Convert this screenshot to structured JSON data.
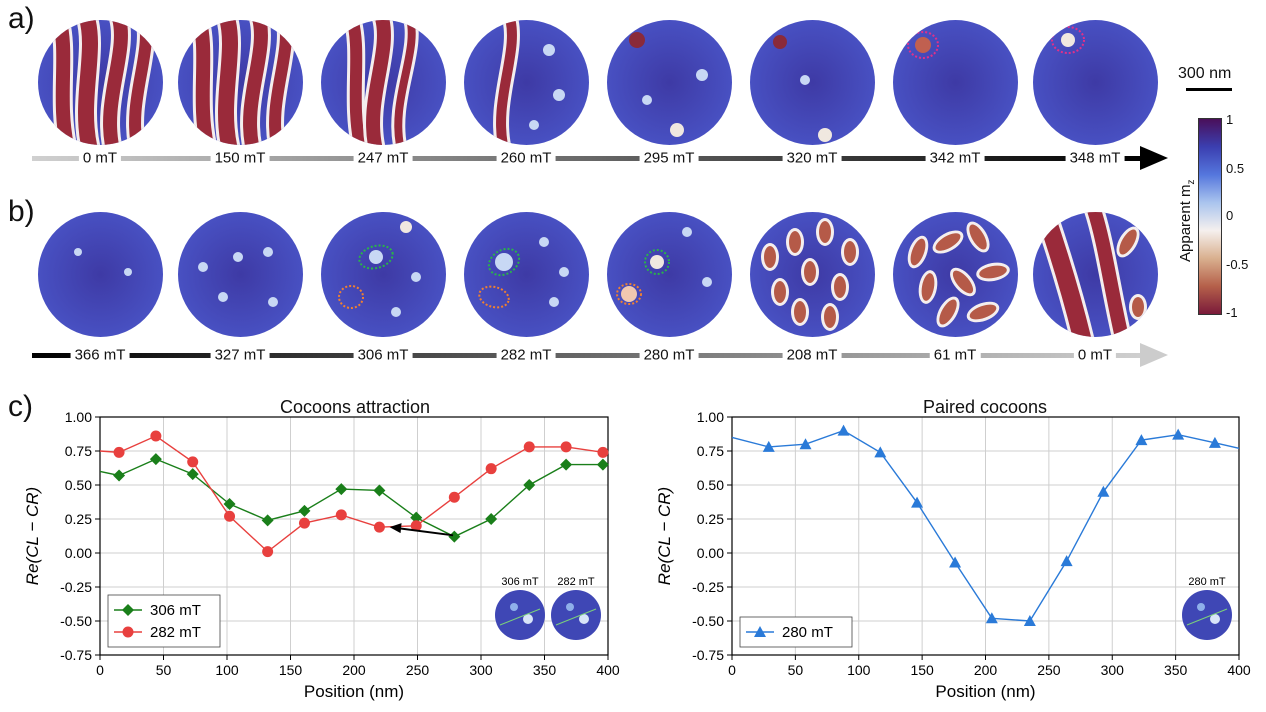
{
  "panels": {
    "a": "a)",
    "b": "b)",
    "c": "c)"
  },
  "row_a": {
    "fields": [
      "0 mT",
      "150 mT",
      "247 mT",
      "260 mT",
      "295 mT",
      "320 mT",
      "342 mT",
      "348 mT"
    ],
    "styles": [
      "stripes",
      "stripes",
      "stripes2",
      "stripe_skyrm",
      "skyrm_few",
      "skyrm_few2",
      "single",
      "single2"
    ],
    "arrow_color": "#000000"
  },
  "row_b": {
    "fields": [
      "366 mT",
      "327 mT",
      "306 mT",
      "282 mT",
      "280 mT",
      "208 mT",
      "61 mT",
      "0 mT"
    ],
    "styles": [
      "uniform",
      "dots",
      "dots_cocoon",
      "dots_cocoon2",
      "dots_cocoon3",
      "bubbles",
      "worms",
      "labyrinth"
    ],
    "arrow_color": "#cccccc"
  },
  "scalebar": {
    "label": "300 nm"
  },
  "colorbar": {
    "title_main": "Apparent m",
    "title_sub": "z",
    "ticks": [
      "1",
      "0.5",
      "0",
      "-0.5",
      "-1"
    ],
    "colors": [
      "#4a0f5a",
      "#3b3fb0",
      "#5577dd",
      "#aac4ee",
      "#f5f0ee",
      "#d9b08f",
      "#b5604a",
      "#7a1a3a"
    ]
  },
  "chart_data": [
    {
      "type": "line",
      "title": "Cocoons attraction",
      "xlabel": "Position (nm)",
      "ylabel": "Re(CL − CR)",
      "xlim": [
        0,
        400
      ],
      "ylim": [
        -0.75,
        1.0
      ],
      "xticks": [
        0,
        50,
        100,
        150,
        200,
        250,
        300,
        350,
        400
      ],
      "yticks": [
        -0.75,
        -0.5,
        -0.25,
        0.0,
        0.25,
        0.5,
        0.75,
        1.0
      ],
      "ytick_labels": [
        "-0.75",
        "-0.50",
        "-0.25",
        "0.00",
        "0.25",
        "0.50",
        "0.75",
        "1.00"
      ],
      "grid": true,
      "legend_position": "bottom-left",
      "inset_labels": [
        "306 mT",
        "282 mT"
      ],
      "series": [
        {
          "name": "306 mT",
          "color": "#1a7f1a",
          "marker": "diamond",
          "x": [
            0,
            15,
            44,
            73,
            102,
            132,
            161,
            190,
            220,
            249,
            279,
            308,
            338,
            367,
            396,
            400
          ],
          "y": [
            0.6,
            0.57,
            0.69,
            0.58,
            0.36,
            0.24,
            0.31,
            0.47,
            0.46,
            0.26,
            0.12,
            0.25,
            0.5,
            0.65,
            0.65,
            0.65
          ]
        },
        {
          "name": "282 mT",
          "color": "#e8403e",
          "marker": "circle",
          "x": [
            0,
            15,
            44,
            73,
            102,
            132,
            161,
            190,
            220,
            249,
            279,
            308,
            338,
            367,
            396,
            400
          ],
          "y": [
            0.75,
            0.74,
            0.86,
            0.67,
            0.27,
            0.01,
            0.22,
            0.28,
            0.19,
            0.2,
            0.41,
            0.62,
            0.78,
            0.78,
            0.74,
            0.74
          ]
        }
      ]
    },
    {
      "type": "line",
      "title": "Paired cocoons",
      "xlabel": "Position (nm)",
      "ylabel": "Re(CL − CR)",
      "xlim": [
        0,
        400
      ],
      "ylim": [
        -0.75,
        1.0
      ],
      "xticks": [
        0,
        50,
        100,
        150,
        200,
        250,
        300,
        350,
        400
      ],
      "yticks": [
        -0.75,
        -0.5,
        -0.25,
        0.0,
        0.25,
        0.5,
        0.75,
        1.0
      ],
      "ytick_labels": [
        "-0.75",
        "-0.50",
        "-0.25",
        "0.00",
        "0.25",
        "0.50",
        "0.75",
        "1.00"
      ],
      "grid": true,
      "legend_position": "bottom-left",
      "inset_labels": [
        "280 mT"
      ],
      "series": [
        {
          "name": "280 mT",
          "color": "#2a7ad8",
          "marker": "triangle",
          "x": [
            0,
            29,
            58,
            88,
            117,
            146,
            176,
            205,
            235,
            264,
            293,
            323,
            352,
            381,
            400
          ],
          "y": [
            0.85,
            0.78,
            0.8,
            0.9,
            0.74,
            0.37,
            -0.07,
            -0.48,
            -0.5,
            -0.06,
            0.45,
            0.83,
            0.87,
            0.81,
            0.77
          ]
        }
      ]
    }
  ]
}
